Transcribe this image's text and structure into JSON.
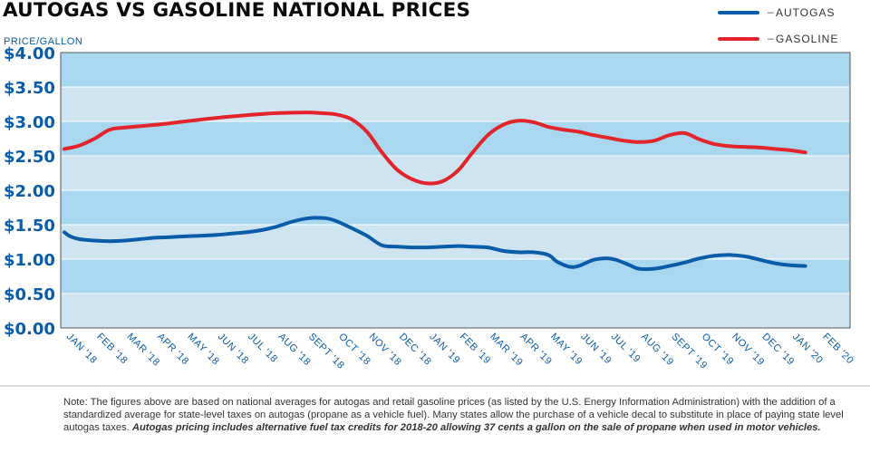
{
  "chart_data": {
    "type": "line",
    "title": "AUTOGAS VS GASOLINE NATIONAL PRICES",
    "ylabel": "PRICE/GALLON",
    "ylim": [
      0,
      4
    ],
    "yticks": [
      "$0.00",
      "$0.50",
      "$1.00",
      "$1.50",
      "$2.00",
      "$2.50",
      "$3.00",
      "$3.50",
      "$4.00"
    ],
    "categories": [
      "JAN '18",
      "FEB '18",
      "MAR '18",
      "APR '18",
      "MAY '18",
      "JUN '18",
      "JUL '18",
      "AUG '18",
      "SEPT '18",
      "OCT '18",
      "NOV '18",
      "DEC '18",
      "JAN '19",
      "FEB '19",
      "MAR '19",
      "APR '19",
      "MAY '19",
      "JUN '19",
      "JUL '19",
      "AUG '19",
      "SEPT '19",
      "OCT '19",
      "NOV '19",
      "DEC '19",
      "JAN '20",
      "FEB '20"
    ],
    "legend_position": "top-right",
    "grid": "alternating horizontal bands",
    "series": [
      {
        "name": "AUTOGAS",
        "color": "#0a5ca8",
        "x": [
          0,
          0.2,
          0.5,
          1,
          1.5,
          2,
          2.5,
          3,
          3.5,
          4,
          4.5,
          5,
          5.5,
          6,
          6.5,
          7,
          7.5,
          8,
          8.3,
          8.7,
          9,
          9.5,
          10,
          10.5,
          11,
          11.5,
          12,
          12.5,
          13,
          13.5,
          14,
          14.5,
          15,
          15.5,
          16,
          16.3,
          16.7,
          17,
          17.5,
          18,
          18.3,
          18.7,
          19,
          19.5,
          20,
          20.5,
          21,
          21.5,
          22,
          22.5,
          23,
          23.5,
          24,
          24.5
        ],
        "y": [
          1.39,
          1.33,
          1.29,
          1.27,
          1.26,
          1.27,
          1.29,
          1.31,
          1.32,
          1.33,
          1.34,
          1.35,
          1.37,
          1.39,
          1.42,
          1.47,
          1.54,
          1.59,
          1.6,
          1.59,
          1.55,
          1.45,
          1.34,
          1.2,
          1.18,
          1.17,
          1.17,
          1.18,
          1.19,
          1.18,
          1.17,
          1.12,
          1.1,
          1.1,
          1.06,
          0.96,
          0.89,
          0.9,
          0.99,
          1.01,
          0.98,
          0.91,
          0.86,
          0.86,
          0.9,
          0.95,
          1.01,
          1.05,
          1.06,
          1.04,
          0.99,
          0.94,
          0.91,
          0.9
        ]
      },
      {
        "name": "GASOLINE",
        "color": "#e2242b",
        "x": [
          0,
          0.5,
          1,
          1.5,
          2,
          3,
          4,
          5,
          6,
          7,
          8,
          8.5,
          9,
          9.5,
          10,
          10.5,
          11,
          11.5,
          12,
          12.5,
          13,
          13.5,
          14,
          14.5,
          15,
          15.5,
          16,
          16.5,
          17,
          17.5,
          18,
          18.5,
          19,
          19.5,
          20,
          20.5,
          21,
          21.5,
          22,
          22.5,
          23,
          23.5,
          24,
          24.5
        ],
        "y": [
          2.6,
          2.65,
          2.75,
          2.88,
          2.91,
          2.95,
          3.0,
          3.05,
          3.09,
          3.12,
          3.13,
          3.12,
          3.1,
          3.03,
          2.85,
          2.55,
          2.3,
          2.16,
          2.1,
          2.13,
          2.28,
          2.55,
          2.8,
          2.95,
          3.01,
          2.99,
          2.92,
          2.88,
          2.85,
          2.8,
          2.76,
          2.72,
          2.7,
          2.72,
          2.8,
          2.83,
          2.74,
          2.67,
          2.64,
          2.63,
          2.62,
          2.6,
          2.58,
          2.55
        ]
      }
    ]
  },
  "footnote": {
    "text": "Note: The figures above are based on national averages for autogas and retail gasoline prices (as listed by the U.S. Energy Information Administration) with the addition of a standardized average for state-level taxes on autogas (propane as a vehicle fuel). Many states allow the purchase of a vehicle decal to substitute in place of paying state level autogas taxes. ",
    "emphasis": "Autogas pricing includes alternative fuel tax credits for 2018-20 allowing 37 cents a gallon on the sale of propane when used in motor vehicles."
  },
  "colors": {
    "band_light": "#cfe4f1",
    "band_dark": "#aad7f0",
    "axis_text": "#0a5ca8",
    "border": "#555555"
  }
}
